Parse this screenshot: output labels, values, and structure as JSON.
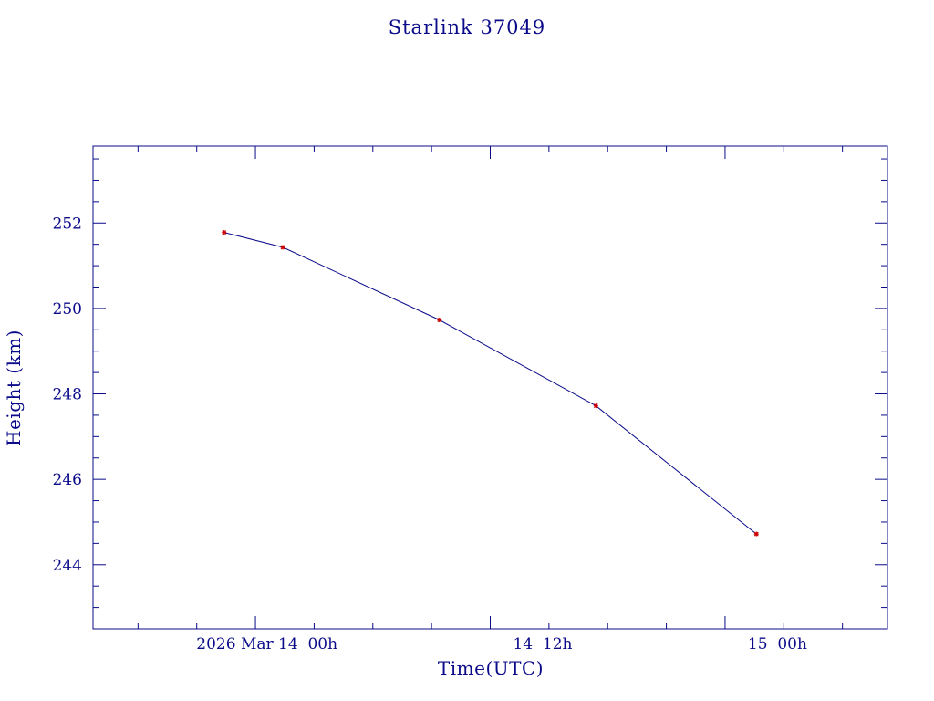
{
  "chart_data": {
    "type": "line",
    "title": "Starlink 37049",
    "xlabel": "Time(UTC)",
    "ylabel": "Height (km)",
    "x_unit": "hours since 2026 Mar 14 00h",
    "xlim": [
      -8.3,
      32.3
    ],
    "ylim": [
      242.5,
      253.8
    ],
    "x_ticks": [
      {
        "value": 0,
        "label": "2026 Mar 14  00h"
      },
      {
        "value": 12,
        "label": "14  12h"
      },
      {
        "value": 24,
        "label": "15  00h"
      }
    ],
    "x_minor_step": 3,
    "y_ticks": [
      244,
      246,
      248,
      250,
      252
    ],
    "y_minor_step": 0.5,
    "grid": false,
    "series": [
      {
        "name": "",
        "color": "#0b0b8a",
        "marker_color": "#cc0000",
        "x": [
          -1.6,
          1.4,
          9.4,
          17.4,
          25.6
        ],
        "y": [
          251.78,
          251.43,
          249.73,
          247.72,
          244.72
        ]
      }
    ]
  }
}
